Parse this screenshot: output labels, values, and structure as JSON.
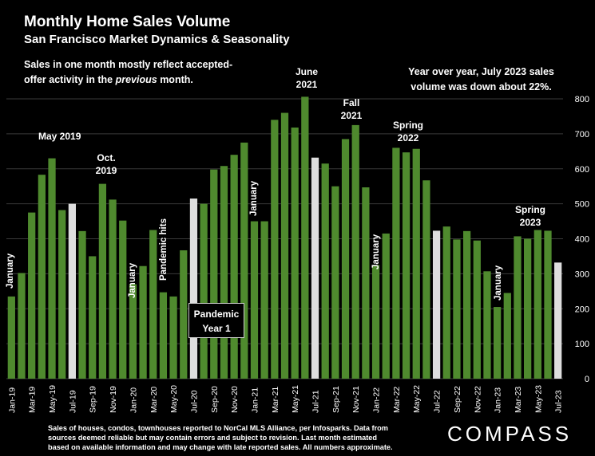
{
  "header": {
    "title": "Monthly Home Sales Volume",
    "subtitle": "San Francisco Market Dynamics & Seasonality",
    "note_left_a": "Sales in one month mostly reflect accepted-offer activity in the ",
    "note_left_em": "previous",
    "note_left_b": " month.",
    "note_right": "Year over year, July 2023 sales volume was down about 22%."
  },
  "annotations": {
    "may2019": "May 2019",
    "oct2019": "Oct. 2019",
    "jan2019": "January",
    "jan2020": "January",
    "pandemic_hits": "Pandemic hits",
    "pandemic_year1": "Pandemic Year 1",
    "jan2021": "January",
    "june2021": "June 2021",
    "fall2021": "Fall 2021",
    "spring2022": "Spring 2022",
    "jan2022": "January",
    "jan2023": "January",
    "spring2023": "Spring 2023"
  },
  "footer": {
    "text": "Sales of houses, condos, townhouses reported to NorCal MLS Alliance, per Infosparks. Data from sources deemed reliable but may contain errors and subject to revision. Last month estimated based on available information and may change with late reported sales. All numbers approximate.",
    "logo": "COMPASS"
  },
  "chart_data": {
    "type": "bar",
    "title": "Monthly Home Sales Volume",
    "ylim": [
      0,
      800
    ],
    "yticks": [
      0,
      100,
      200,
      300,
      400,
      500,
      600,
      700,
      800
    ],
    "y_axis_side": "right",
    "grid": true,
    "colors": {
      "bar": "#4f8a2e",
      "highlight": "#dedede",
      "grid": "#3a3a3a"
    },
    "categories": [
      "Jan-19",
      "Feb-19",
      "Mar-19",
      "Apr-19",
      "May-19",
      "Jun-19",
      "Jul-19",
      "Aug-19",
      "Sep-19",
      "Oct-19",
      "Nov-19",
      "Dec-19",
      "Jan-20",
      "Feb-20",
      "Mar-20",
      "Apr-20",
      "May-20",
      "Jun-20",
      "Jul-20",
      "Aug-20",
      "Sep-20",
      "Oct-20",
      "Nov-20",
      "Dec-20",
      "Jan-21",
      "Feb-21",
      "Mar-21",
      "Apr-21",
      "May-21",
      "Jun-21",
      "Jul-21",
      "Aug-21",
      "Sep-21",
      "Oct-21",
      "Nov-21",
      "Dec-21",
      "Jan-22",
      "Feb-22",
      "Mar-22",
      "Apr-22",
      "May-22",
      "Jun-22",
      "Jul-22",
      "Aug-22",
      "Sep-22",
      "Oct-22",
      "Nov-22",
      "Dec-22",
      "Jan-23",
      "Feb-23",
      "Mar-23",
      "Apr-23",
      "May-23",
      "Jun-23",
      "Jul-23"
    ],
    "x_tick_labels": [
      "Jan-19",
      "",
      "Mar-19",
      "",
      "May-19",
      "",
      "Jul-19",
      "",
      "Sep-19",
      "",
      "Nov-19",
      "",
      "Jan-20",
      "",
      "Mar-20",
      "",
      "May-20",
      "",
      "Jul-20",
      "",
      "Sep-20",
      "",
      "Nov-20",
      "",
      "Jan-21",
      "",
      "Mar-21",
      "",
      "May-21",
      "",
      "Jul-21",
      "",
      "Sep-21",
      "",
      "Nov-21",
      "",
      "Jan-22",
      "",
      "Mar-22",
      "",
      "May-22",
      "",
      "Jul-22",
      "",
      "Sep-22",
      "",
      "Nov-22",
      "",
      "Jan-23",
      "",
      "Mar-23",
      "",
      "May-23",
      "",
      "Jul-23"
    ],
    "values": [
      235,
      302,
      475,
      583,
      630,
      482,
      500,
      422,
      350,
      557,
      512,
      452,
      270,
      322,
      425,
      247,
      235,
      367,
      515,
      500,
      598,
      608,
      640,
      675,
      450,
      450,
      740,
      760,
      718,
      806,
      632,
      615,
      550,
      685,
      725,
      547,
      325,
      415,
      660,
      647,
      657,
      567,
      423,
      435,
      398,
      422,
      395,
      307,
      205,
      245,
      407,
      400,
      425,
      423,
      332
    ],
    "highlight": [
      false,
      false,
      false,
      false,
      false,
      false,
      true,
      false,
      false,
      false,
      false,
      false,
      false,
      false,
      false,
      false,
      false,
      false,
      true,
      false,
      false,
      false,
      false,
      false,
      false,
      false,
      false,
      false,
      false,
      false,
      true,
      false,
      false,
      false,
      false,
      false,
      false,
      false,
      false,
      false,
      false,
      false,
      true,
      false,
      false,
      false,
      false,
      false,
      false,
      false,
      false,
      false,
      false,
      false,
      true
    ]
  }
}
